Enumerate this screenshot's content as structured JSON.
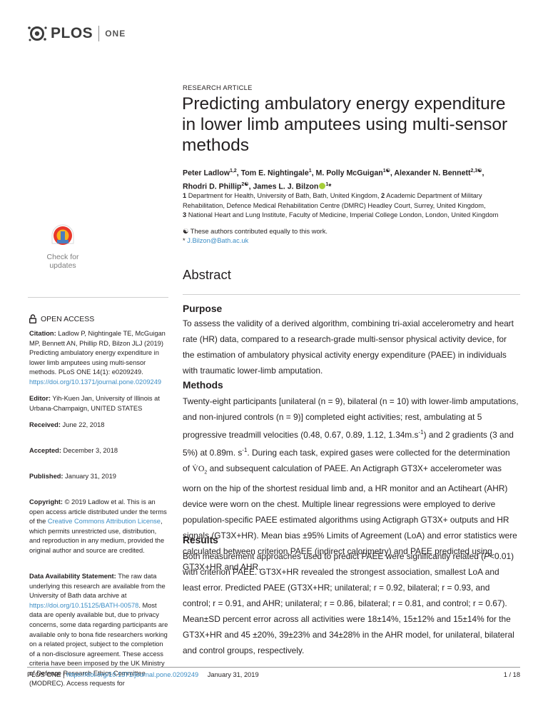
{
  "header": {
    "logo_text": "PLOS",
    "journal": "ONE"
  },
  "sidebar": {
    "check_updates": "Check for updates",
    "open_access": "OPEN ACCESS",
    "citation_label": "Citation:",
    "citation_text": "Ladlow P, Nightingale TE, McGuigan MP, Bennett AN, Phillip RD, Bilzon JLJ (2019) Predicting ambulatory energy expenditure in lower limb amputees using multi-sensor methods. PLoS ONE 14(1): e0209249.",
    "citation_doi": "https://doi.org/10.1371/journal.pone.0209249",
    "editor_label": "Editor:",
    "editor_text": "Yih-Kuen Jan, University of Illinois at Urbana-Champaign, UNITED STATES",
    "received_label": "Received:",
    "received_text": "June 22, 2018",
    "accepted_label": "Accepted:",
    "accepted_text": "December 3, 2018",
    "published_label": "Published:",
    "published_text": "January 31, 2019",
    "copyright_label": "Copyright:",
    "copyright_text_1": "© 2019 Ladlow et al. This is an open access article distributed under the terms of the",
    "copyright_link": "Creative Commons Attribution License",
    "copyright_text_2": ", which permits unrestricted use, distribution, and reproduction in any medium, provided the original author and source are credited.",
    "data_label": "Data Availability Statement:",
    "data_text_1": "The raw data underlying this research are available from the University of Bath data archive at",
    "data_link": "https://doi.org/10.15125/BATH-00578",
    "data_text_2": ". Most data are openly available but, due to privacy concerns, some data regarding participants are available only to bona fide researchers working on a related project, subject to the completion of a non-disclosure agreement. These access criteria have been imposed by the UK Ministry of Defence Research Ethics Committee (MODREC). Access requests for"
  },
  "article": {
    "type": "RESEARCH ARTICLE",
    "title": "Predicting ambulatory energy expenditure in lower limb amputees using multi-sensor methods",
    "authors": [
      {
        "name": "Peter Ladlow",
        "sup": "1,2",
        "sep": ", "
      },
      {
        "name": "Tom E. Nightingale",
        "sup": "1",
        "sep": ", "
      },
      {
        "name": "M. Polly McGuigan",
        "sup": "1☯",
        "sep": ", "
      },
      {
        "name": "Alexander N. Bennett",
        "sup": "2,3☯",
        "sep": ", "
      },
      {
        "name": "Rhodri D. Phillip",
        "sup": "2☯",
        "sep": ", "
      },
      {
        "name": "James L. J. Bilzon",
        "sup": "1",
        "sep": "*"
      }
    ],
    "affiliations": [
      {
        "num": "1",
        "text": "Department for Health, University of Bath, Bath, United Kingdom,"
      },
      {
        "num": "2",
        "text": "Academic Department of Military Rehabilitation, Defence Medical Rehabilitation Centre (DMRC) Headley Court, Surrey, United Kingdom,"
      },
      {
        "num": "3",
        "text": "National Heart and Lung Institute, Faculty of Medicine, Imperial College London, London, United Kingdom"
      }
    ],
    "equal_note": "☯ These authors contributed equally to this work.",
    "corresponding_mark": "*",
    "corresponding_email": "J.Bilzon@Bath.ac.uk",
    "abstract_heading": "Abstract",
    "purpose_heading": "Purpose",
    "purpose_text": "To assess the validity of a derived algorithm, combining tri-axial accelerometry and heart rate (HR) data, compared to a research-grade multi-sensor physical activity device, for the estimation of ambulatory physical activity energy expenditure (PAEE) in individuals with traumatic lower-limb amputation.",
    "methods_heading": "Methods",
    "methods_text_1": "Twenty-eight participants [unilateral (n = 9), bilateral (n = 10) with lower-limb amputations, and non-injured controls (n = 9)] completed eight activities; rest, ambulating at 5 progressive treadmill velocities (0.48, 0.67, 0.89, 1.12, 1.34m.s",
    "methods_sup_1": "-1",
    "methods_text_2": ") and 2 gradients (3 and 5%) at 0.89m. s",
    "methods_sup_2": "-1",
    "methods_text_3": ". During each task, expired gases were collected for the determination of",
    "vo2": "V̇O",
    "vo2_sub": "2",
    "methods_text_4": "and subsequent calculation of PAEE. An Actigraph GT3X+ accelerometer was worn on the hip of the shortest residual limb and, a HR monitor and an Actiheart (AHR) device were worn on the chest. Multiple linear regressions were employed to derive population-specific PAEE estimated algorithms using Actigraph GT3X+ outputs and HR signals (GT3X+HR). Mean bias ±95% Limits of Agreement (LoA) and error statistics were calculated between criterion PAEE (indirect calorimetry) and PAEE predicted using GT3X+HR and AHR.",
    "results_heading": "Results",
    "results_text_1": "Both measurement approaches used to predict PAEE were significantly related (",
    "results_p": "P",
    "results_text_2": "<0.01) with criterion PAEE. GT3X+HR revealed the strongest association, smallest LoA and least error. Predicted PAEE (GT3X+HR; unilateral; r = 0.92, bilateral; r = 0.93, and control; r = 0.91, and AHR; unilateral; r = 0.86, bilateral; r = 0.81, and control; r = 0.67). Mean±SD percent error across all activities were 18±14%, 15±12% and 15±14% for the GT3X+HR and 45 ±20%, 39±23% and 34±28% in the AHR model, for unilateral, bilateral and control groups, respectively."
  },
  "footer": {
    "journal": "PLOS ONE |",
    "doi": "https://doi.org/10.1371/journal.pone.0209249",
    "date": "January 31, 2019",
    "page": "1 / 18"
  }
}
